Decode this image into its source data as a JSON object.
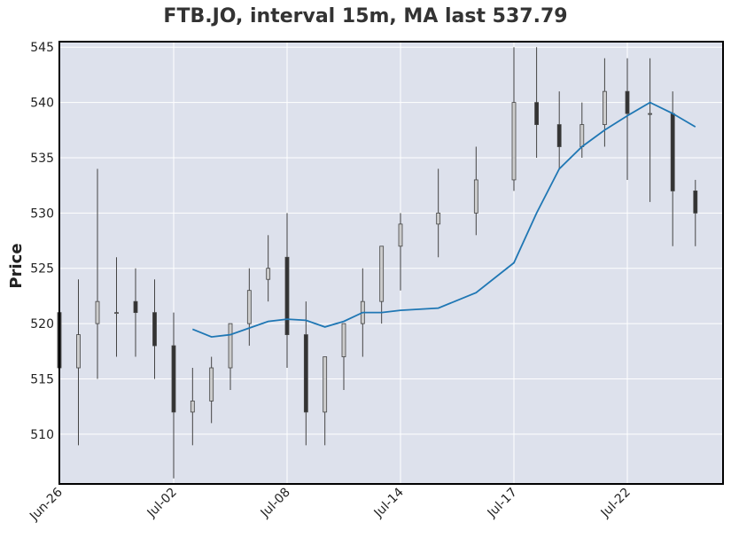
{
  "chart_data": {
    "type": "candlestick",
    "title": "FTB.JO, interval 15m, MA last 537.79",
    "xlabel": "",
    "ylabel": "Price",
    "ylim": [
      505.5,
      545.5
    ],
    "yticks": [
      510,
      515,
      520,
      525,
      530,
      535,
      540,
      545
    ],
    "grid": true,
    "colors": {
      "background": "#dde1ec",
      "grid": "#ffffff",
      "candle": "#444444",
      "ma": "#1f77b4"
    },
    "x_tick_labels": [
      "Jun-26",
      "Jul-02",
      "Jul-08",
      "Jul-14",
      "Jul-17",
      "Jul-22"
    ],
    "ma": {
      "last": 537.79,
      "x": [
        "Jul-03",
        "Jul-04",
        "Jul-05",
        "Jul-06",
        "Jul-07",
        "Jul-08",
        "Jul-09",
        "Jul-10",
        "Jul-11",
        "Jul-12",
        "Jul-13",
        "Jul-14",
        "Jul-15",
        "Jul-16",
        "Jul-17",
        "Jul-18",
        "Jul-19",
        "Jul-20",
        "Jul-21",
        "Jul-22",
        "Jul-23",
        "Jul-24",
        "Jul-25"
      ],
      "y": [
        519.5,
        518.8,
        519.0,
        519.6,
        520.2,
        520.4,
        520.3,
        519.7,
        520.2,
        521.0,
        521.0,
        521.2,
        521.4,
        522.8,
        525.5,
        530.0,
        534.0,
        536.0,
        537.5,
        538.8,
        540.0,
        539.0,
        537.8
      ]
    },
    "ohlc": {
      "x": [
        "Jun-26",
        "Jun-27",
        "Jun-28",
        "Jun-29",
        "Jun-30",
        "Jul-01",
        "Jul-02",
        "Jul-03",
        "Jul-04",
        "Jul-05",
        "Jul-06",
        "Jul-07",
        "Jul-08",
        "Jul-09",
        "Jul-10",
        "Jul-11",
        "Jul-12",
        "Jul-13",
        "Jul-14",
        "Jul-15",
        "Jul-16",
        "Jul-17",
        "Jul-18",
        "Jul-19",
        "Jul-20",
        "Jul-21",
        "Jul-22",
        "Jul-23",
        "Jul-24",
        "Jul-25"
      ],
      "open": [
        521,
        516,
        520,
        521,
        522,
        521,
        518,
        512,
        513,
        516,
        520,
        524,
        526,
        519,
        512,
        517,
        520,
        522,
        527,
        529,
        530,
        533,
        540,
        538,
        536,
        538,
        541,
        539,
        539,
        532
      ],
      "high": [
        526,
        524,
        534,
        526,
        525,
        524,
        521,
        516,
        517,
        520,
        525,
        528,
        530,
        522,
        516,
        520,
        525,
        527,
        530,
        534,
        536,
        545,
        545,
        541,
        540,
        544,
        544,
        544,
        541,
        533
      ],
      "low": [
        509,
        509,
        515,
        517,
        517,
        515,
        506,
        509,
        511,
        514,
        518,
        522,
        516,
        509,
        509,
        514,
        517,
        520,
        523,
        526,
        528,
        532,
        535,
        534,
        535,
        536,
        533,
        531,
        527,
        527
      ],
      "close": [
        516,
        519,
        522,
        521,
        521,
        518,
        512,
        513,
        516,
        520,
        523,
        525,
        519,
        512,
        517,
        520,
        522,
        527,
        529,
        530,
        533,
        540,
        538,
        536,
        538,
        541,
        539,
        539,
        532,
        530
      ]
    }
  }
}
